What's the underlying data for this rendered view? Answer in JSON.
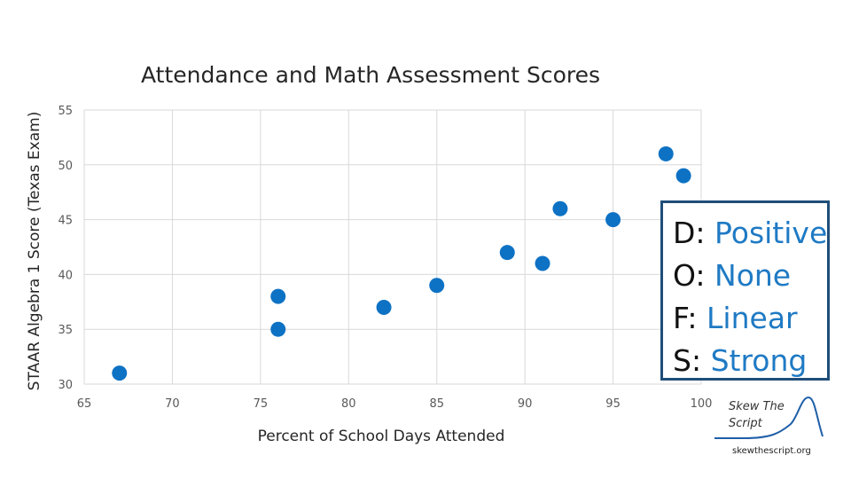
{
  "chart_data": {
    "type": "scatter",
    "title": "Attendance and Math Assessment Scores",
    "xlabel": "Percent of School Days Attended",
    "ylabel": "STAAR Algebra 1 Score (Texas Exam)",
    "xlim": [
      65,
      100
    ],
    "ylim": [
      30,
      55
    ],
    "xticks": [
      65,
      70,
      75,
      80,
      85,
      90,
      95,
      100
    ],
    "yticks": [
      30,
      35,
      40,
      45,
      50,
      55
    ],
    "grid": true,
    "point_color": "#0e72c4",
    "points": [
      {
        "x": 67,
        "y": 31
      },
      {
        "x": 76,
        "y": 38
      },
      {
        "x": 76,
        "y": 35
      },
      {
        "x": 82,
        "y": 37
      },
      {
        "x": 85,
        "y": 39
      },
      {
        "x": 89,
        "y": 42
      },
      {
        "x": 91,
        "y": 41
      },
      {
        "x": 92,
        "y": 46
      },
      {
        "x": 95,
        "y": 45
      },
      {
        "x": 98,
        "y": 51
      },
      {
        "x": 99,
        "y": 49
      }
    ]
  },
  "annotation": {
    "rows": [
      {
        "key": "D:",
        "value": "Positive"
      },
      {
        "key": "O:",
        "value": "None"
      },
      {
        "key": "F:",
        "value": "Linear"
      },
      {
        "key": "S:",
        "value": "Strong"
      }
    ]
  },
  "logo": {
    "line1": "Skew The",
    "line2": "Script",
    "site": "skewthescript.org"
  }
}
